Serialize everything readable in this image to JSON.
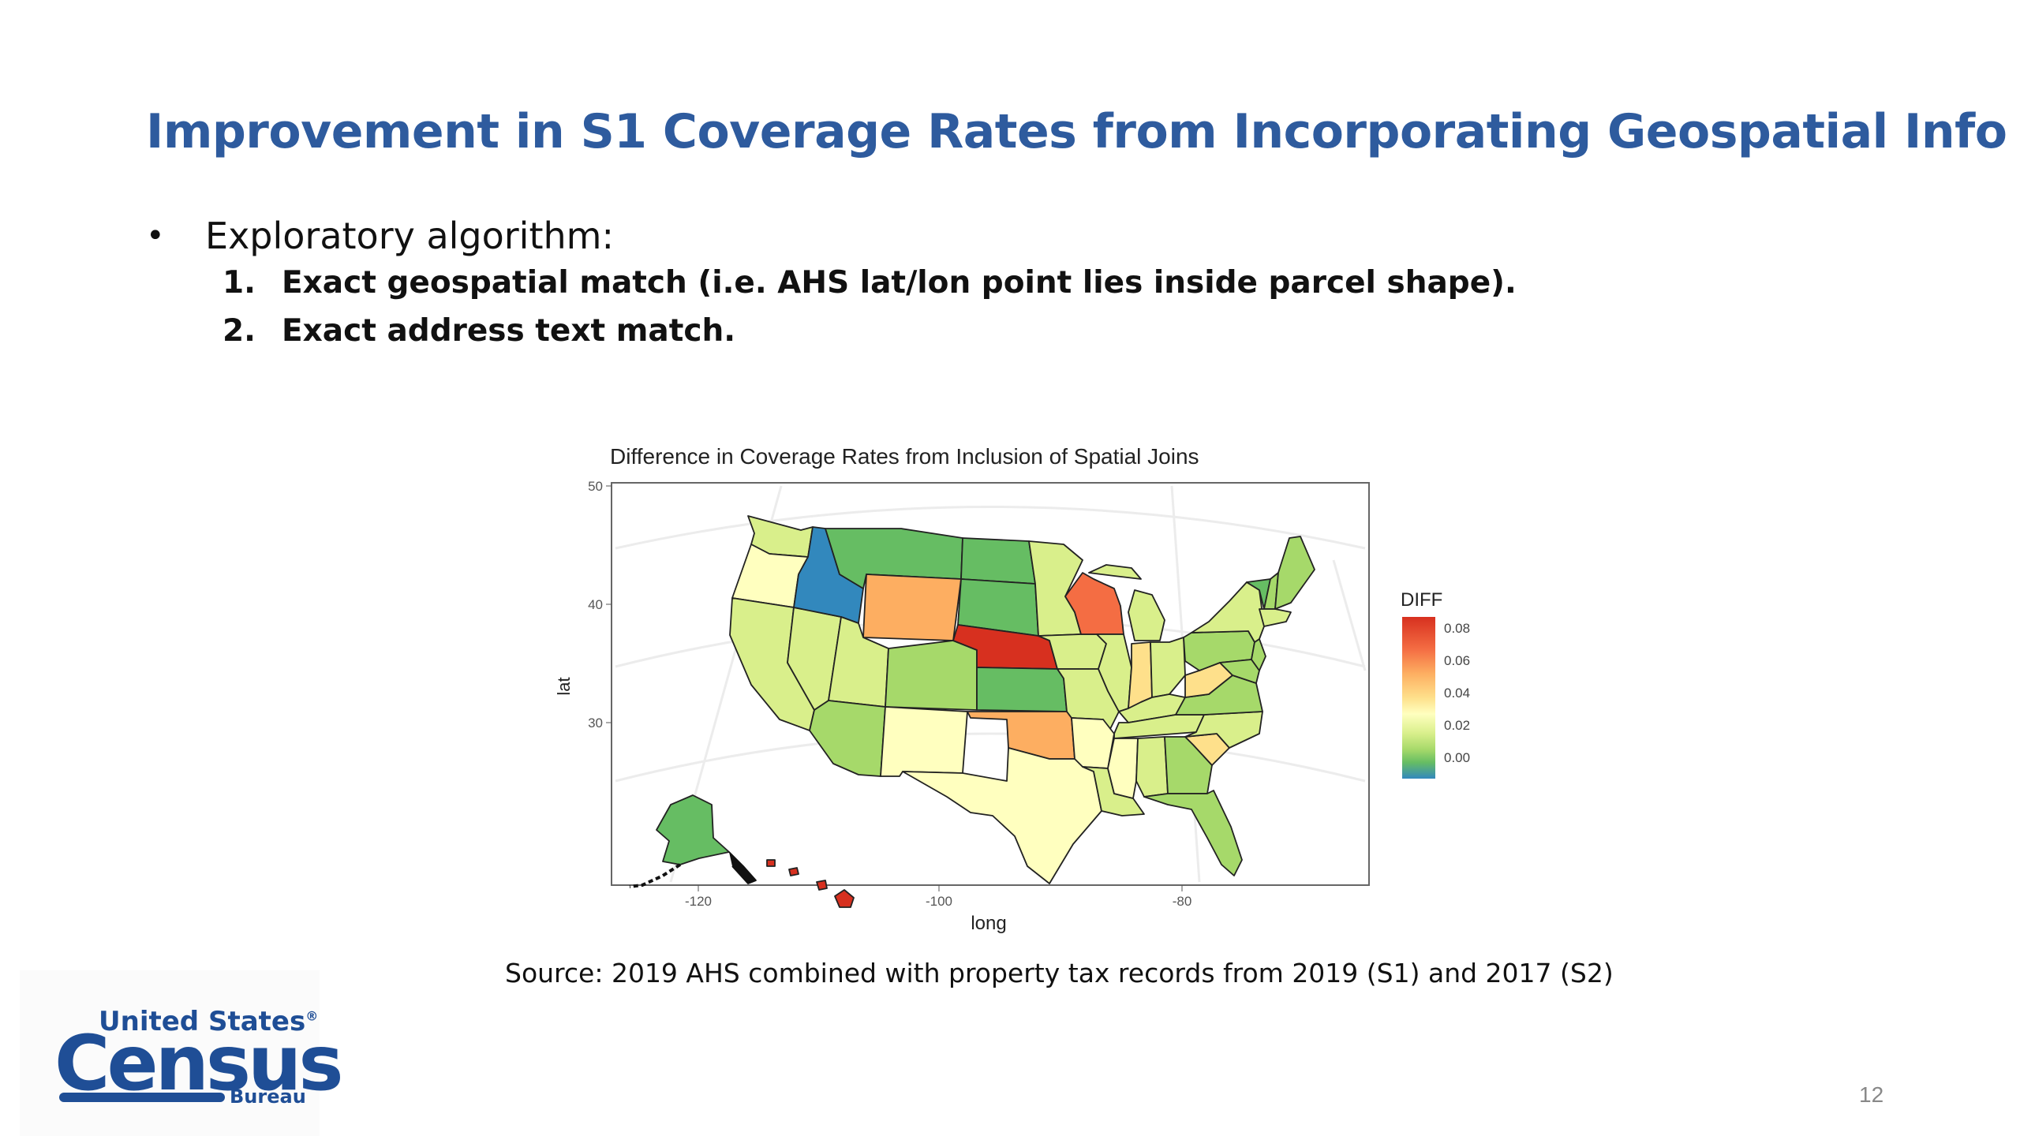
{
  "slide": {
    "title": "Improvement in S1 Coverage Rates from Incorporating Geospatial Info",
    "bullet": "Exploratory algorithm:",
    "steps": [
      {
        "num": "1.",
        "text": "Exact geospatial match (i.e. AHS lat/lon point lies inside parcel shape)."
      },
      {
        "num": "2.",
        "text": "Exact address text match."
      }
    ],
    "source": "Source: 2019 AHS combined with property tax records from 2019 (S1) and 2017 (S2)",
    "page_number": "12",
    "logo": {
      "line1": "United States",
      "registered": "®",
      "line2": "Census",
      "line3": "Bureau"
    }
  },
  "chart_data": {
    "type": "heatmap",
    "subtype": "choropleth map",
    "title": "Difference in Coverage Rates from Inclusion of Spatial Joins",
    "xlabel": "long",
    "ylabel": "lat",
    "x_ticks": [
      -120,
      -100,
      -80
    ],
    "y_ticks": [
      50,
      40,
      30
    ],
    "legend": {
      "title": "DIFF",
      "ticks": [
        "0.08",
        "0.06",
        "0.04",
        "0.02",
        "0.00"
      ],
      "range": [
        -0.01,
        0.09
      ],
      "colors": [
        "#d7301f",
        "#f46d43",
        "#fdae61",
        "#fee08b",
        "#ffffbf",
        "#d9ef8b",
        "#a6d96a",
        "#66bd63",
        "#3288bd"
      ],
      "placement": "right"
    },
    "regions": [
      {
        "name": "Idaho",
        "value": -0.01,
        "color": "#3288bd"
      },
      {
        "name": "Montana",
        "value": 0.005,
        "color": "#66bd63"
      },
      {
        "name": "North Dakota",
        "value": 0.005,
        "color": "#66bd63"
      },
      {
        "name": "South Dakota",
        "value": 0.005,
        "color": "#66bd63"
      },
      {
        "name": "Kansas",
        "value": 0.005,
        "color": "#66bd63"
      },
      {
        "name": "Alaska",
        "value": 0.005,
        "color": "#66bd63"
      },
      {
        "name": "Wyoming",
        "value": 0.055,
        "color": "#fdae61"
      },
      {
        "name": "Nebraska",
        "value": 0.085,
        "color": "#d7301f"
      },
      {
        "name": "Wisconsin",
        "value": 0.075,
        "color": "#f46d43"
      },
      {
        "name": "Hawaii",
        "value": 0.085,
        "color": "#d7301f"
      },
      {
        "name": "Oklahoma",
        "value": 0.055,
        "color": "#fdae61"
      },
      {
        "name": "Indiana",
        "value": 0.045,
        "color": "#fee08b"
      },
      {
        "name": "West Virginia",
        "value": 0.045,
        "color": "#fee08b"
      },
      {
        "name": "South Carolina",
        "value": 0.04,
        "color": "#fee08b"
      },
      {
        "name": "Oregon",
        "value": 0.03,
        "color": "#ffffbf"
      },
      {
        "name": "Texas",
        "value": 0.025,
        "color": "#ffffbf"
      },
      {
        "name": "Colorado",
        "value": 0.01,
        "color": "#a6d96a"
      },
      {
        "name": "Washington",
        "value": 0.015,
        "color": "#d9ef8b"
      },
      {
        "name": "California",
        "value": 0.015,
        "color": "#d9ef8b"
      },
      {
        "name": "Nevada",
        "value": 0.02,
        "color": "#d9ef8b"
      },
      {
        "name": "Utah",
        "value": 0.015,
        "color": "#d9ef8b"
      },
      {
        "name": "Arizona",
        "value": 0.015,
        "color": "#a6d96a"
      },
      {
        "name": "New Mexico",
        "value": 0.025,
        "color": "#ffffbf"
      },
      {
        "name": "Minnesota",
        "value": 0.015,
        "color": "#d9ef8b"
      },
      {
        "name": "Iowa",
        "value": 0.02,
        "color": "#d9ef8b"
      },
      {
        "name": "Missouri",
        "value": 0.02,
        "color": "#d9ef8b"
      },
      {
        "name": "Arkansas",
        "value": 0.02,
        "color": "#ffffbf"
      },
      {
        "name": "Louisiana",
        "value": 0.02,
        "color": "#d9ef8b"
      },
      {
        "name": "Illinois",
        "value": 0.015,
        "color": "#d9ef8b"
      },
      {
        "name": "Michigan",
        "value": 0.015,
        "color": "#d9ef8b"
      },
      {
        "name": "Ohio",
        "value": 0.02,
        "color": "#d9ef8b"
      },
      {
        "name": "Kentucky",
        "value": 0.02,
        "color": "#d9ef8b"
      },
      {
        "name": "Tennessee",
        "value": 0.02,
        "color": "#d9ef8b"
      },
      {
        "name": "Mississippi",
        "value": 0.02,
        "color": "#ffffbf"
      },
      {
        "name": "Alabama",
        "value": 0.02,
        "color": "#d9ef8b"
      },
      {
        "name": "Georgia",
        "value": 0.015,
        "color": "#a6d96a"
      },
      {
        "name": "Florida",
        "value": 0.015,
        "color": "#a6d96a"
      },
      {
        "name": "North Carolina",
        "value": 0.015,
        "color": "#d9ef8b"
      },
      {
        "name": "Virginia",
        "value": 0.015,
        "color": "#a6d96a"
      },
      {
        "name": "Pennsylvania",
        "value": 0.015,
        "color": "#a6d96a"
      },
      {
        "name": "New York",
        "value": 0.02,
        "color": "#d9ef8b"
      },
      {
        "name": "Maine",
        "value": 0.015,
        "color": "#a6d96a"
      },
      {
        "name": "Vermont",
        "value": 0.005,
        "color": "#66bd63"
      },
      {
        "name": "New Hampshire",
        "value": 0.015,
        "color": "#a6d96a"
      },
      {
        "name": "Maryland",
        "value": 0.015,
        "color": "#a6d96a"
      }
    ]
  }
}
